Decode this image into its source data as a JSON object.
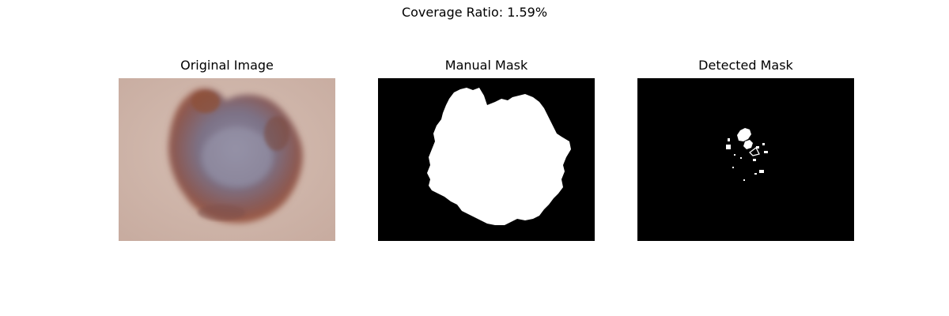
{
  "figure": {
    "suptitle": "Coverage Ratio: 1.59%",
    "panels": [
      {
        "title": "Original Image"
      },
      {
        "title": "Manual Mask"
      },
      {
        "title": "Detected Mask"
      }
    ]
  },
  "colors": {
    "skin": "#cdb3a8",
    "lesion_core": "#8b8498",
    "lesion_rim": "#a4593d",
    "mask_bg": "#000000",
    "mask_fg": "#ffffff"
  }
}
